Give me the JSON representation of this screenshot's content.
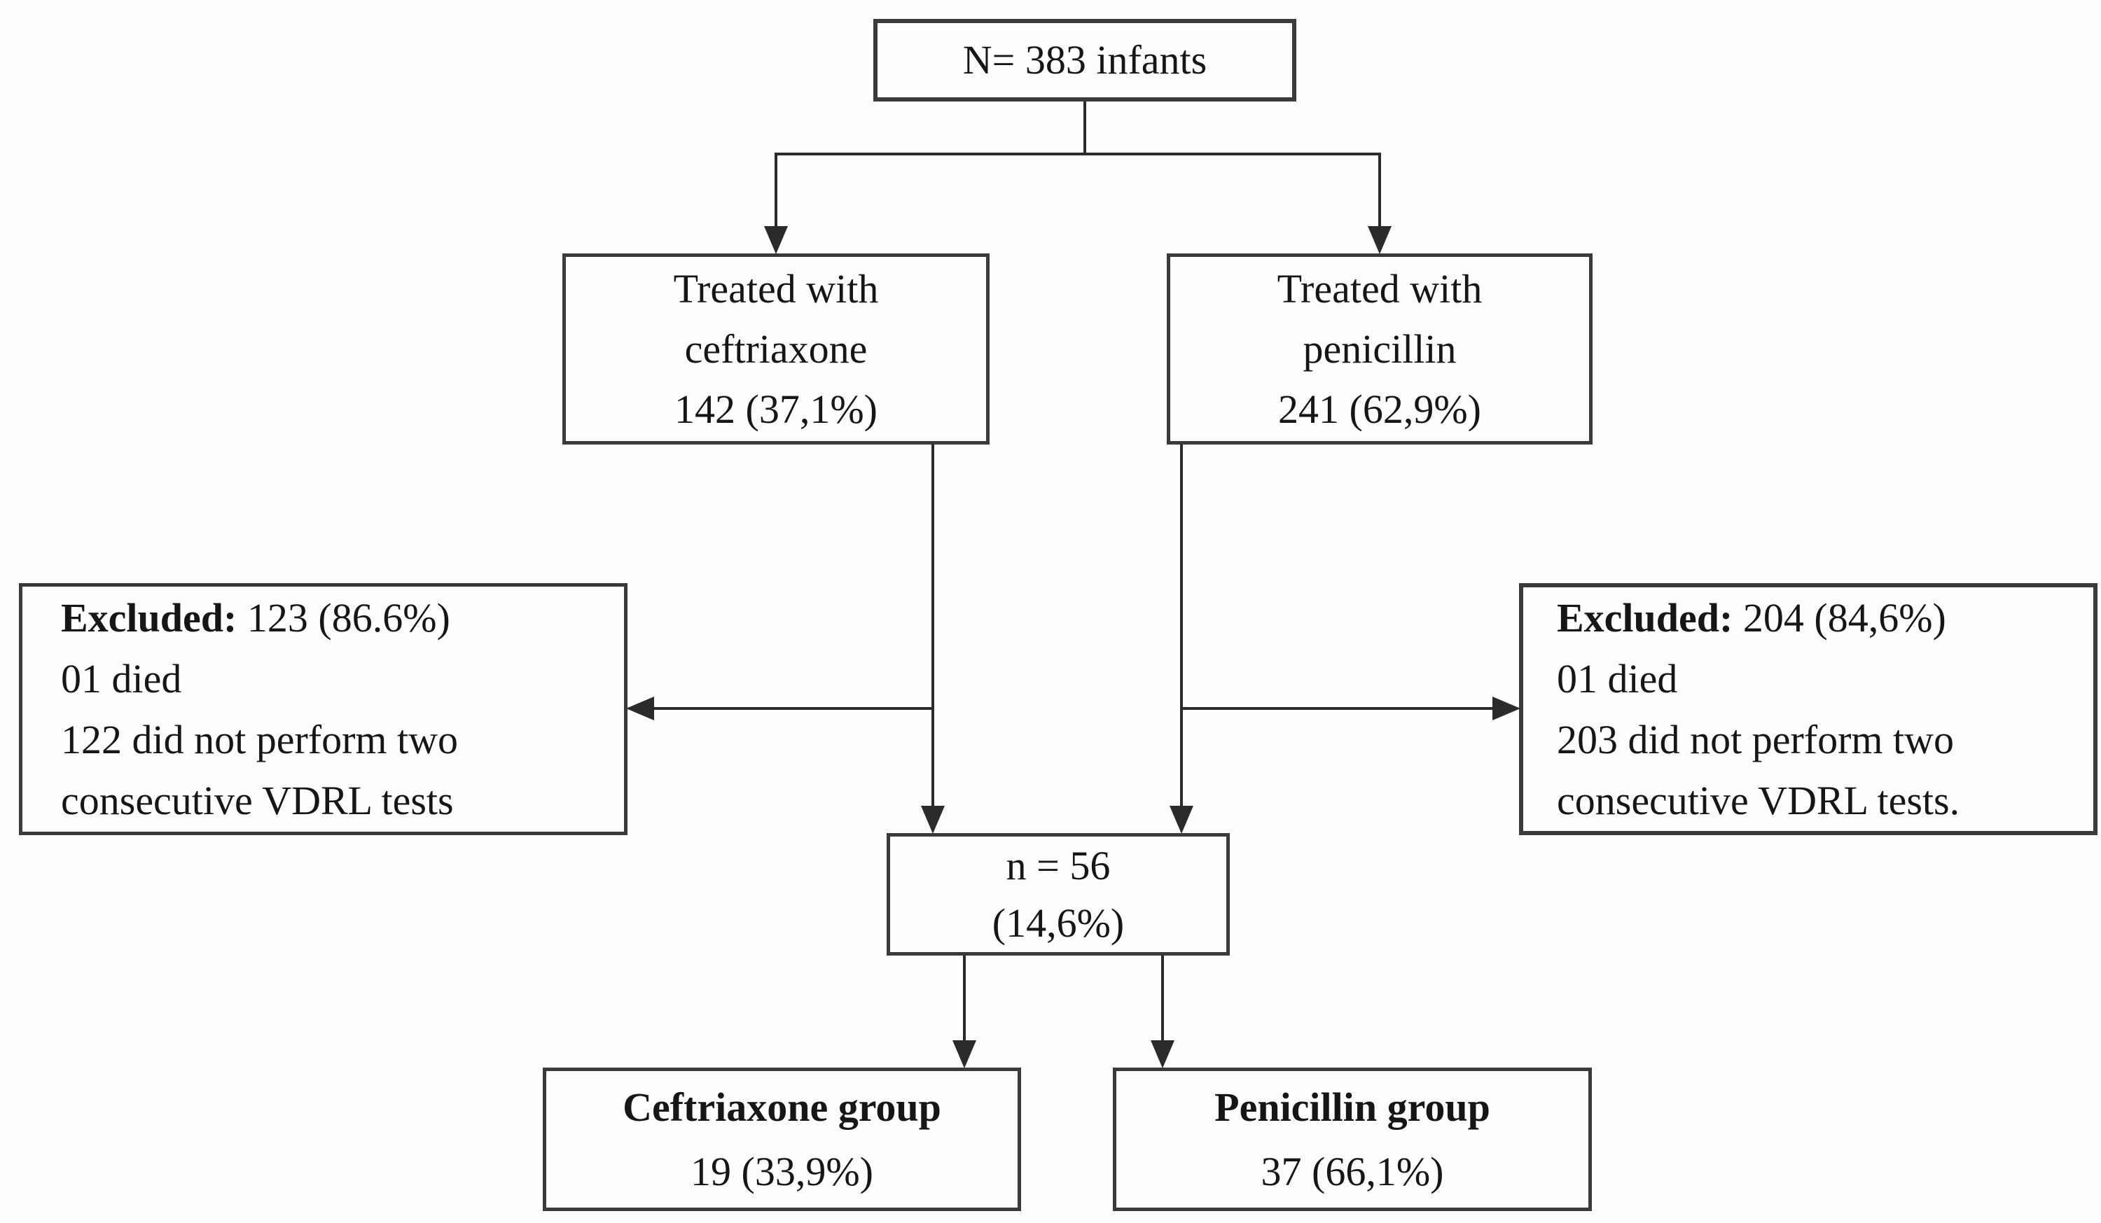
{
  "figure": {
    "type": "study-flow-diagram",
    "colors": {
      "background": "#fefefe",
      "box_border": "#3a3a3a",
      "line": "#2b2b2b",
      "text": "#161616"
    }
  },
  "boxes": {
    "total": {
      "text": "N= 383 infants"
    },
    "treated_ceftriaxone": {
      "lines": [
        "Treated with",
        "ceftriaxone",
        "142 (37,1%)"
      ]
    },
    "treated_penicillin": {
      "lines": [
        "Treated with",
        "penicillin",
        "241 (62,9%)"
      ]
    },
    "excluded_ceftriaxone": {
      "label_bold": "Excluded:",
      "label_rest": " 123 (86.6%)",
      "lines": [
        "01 died",
        "122 did not perform two",
        "consecutive VDRL tests"
      ]
    },
    "excluded_penicillin": {
      "label_bold": "Excluded:",
      "label_rest": " 204 (84,6%)",
      "lines": [
        "01 died",
        "203 did not perform two",
        "consecutive VDRL tests."
      ]
    },
    "analyzed": {
      "lines": [
        "n = 56",
        "(14,6%)"
      ]
    },
    "group_ceftriaxone": {
      "title": "Ceftriaxone group",
      "value": "19 (33,9%)"
    },
    "group_penicillin": {
      "title": "Penicillin group",
      "value": "37 (66,1%)"
    }
  },
  "edges": [
    {
      "from": "total",
      "to": "treated_ceftriaxone"
    },
    {
      "from": "total",
      "to": "treated_penicillin"
    },
    {
      "from": "treated_ceftriaxone",
      "to": "excluded_ceftriaxone"
    },
    {
      "from": "treated_ceftriaxone",
      "to": "analyzed"
    },
    {
      "from": "treated_penicillin",
      "to": "excluded_penicillin"
    },
    {
      "from": "treated_penicillin",
      "to": "analyzed"
    },
    {
      "from": "analyzed",
      "to": "group_ceftriaxone"
    },
    {
      "from": "analyzed",
      "to": "group_penicillin"
    }
  ]
}
